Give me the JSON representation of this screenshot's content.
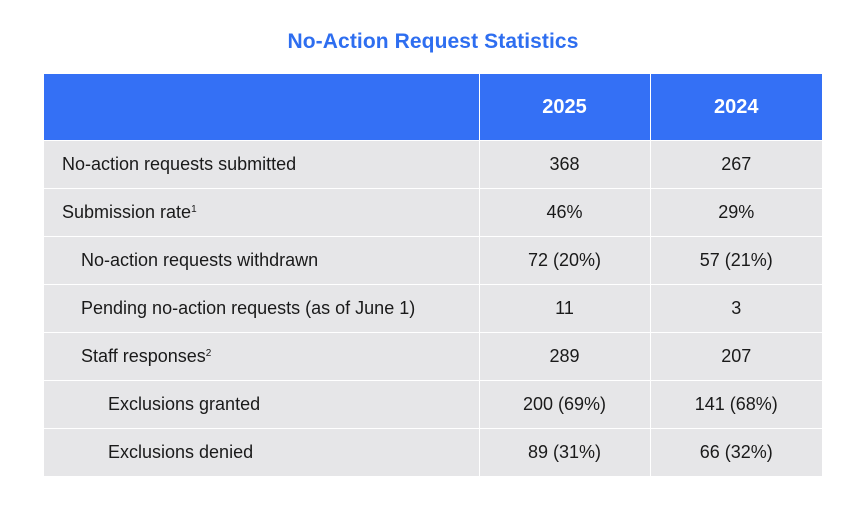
{
  "chart_data": {
    "type": "table",
    "title": "No-Action Request Statistics",
    "columns": [
      "",
      "2025",
      "2024"
    ],
    "rows": [
      {
        "label": "No-action requests submitted",
        "footnote": "",
        "level": 0,
        "values": [
          "368",
          "267"
        ]
      },
      {
        "label": "Submission rate",
        "footnote": "1",
        "level": 0,
        "values": [
          "46%",
          "29%"
        ]
      },
      {
        "label": "No-action requests withdrawn",
        "footnote": "",
        "level": 1,
        "values": [
          "72 (20%)",
          "57 (21%)"
        ]
      },
      {
        "label": "Pending no-action requests (as of June 1)",
        "footnote": "",
        "level": 1,
        "values": [
          "11",
          "3"
        ]
      },
      {
        "label": "Staff responses",
        "footnote": "2",
        "level": 1,
        "values": [
          "289",
          "207"
        ]
      },
      {
        "label": "Exclusions granted",
        "footnote": "",
        "level": 2,
        "values": [
          "200 (69%)",
          "141 (68%)"
        ]
      },
      {
        "label": "Exclusions denied",
        "footnote": "",
        "level": 2,
        "values": [
          "89 (31%)",
          "66 (32%)"
        ]
      }
    ]
  },
  "colors": {
    "title": "#2e6ef0",
    "header_background": "#3470f5",
    "row_background": "#e6e6e8"
  }
}
